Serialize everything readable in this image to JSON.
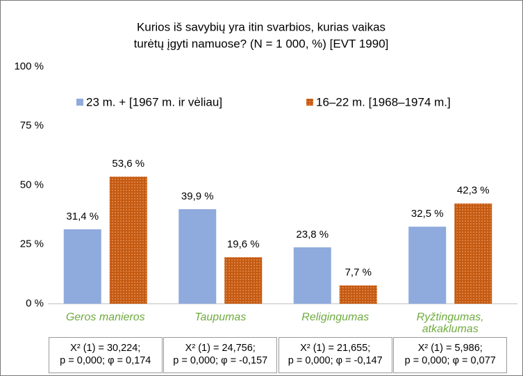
{
  "chart_data": {
    "type": "bar",
    "title": [
      "Kurios iš savybių yra itin svarbios, kurias vaikas",
      "turėtų įgyti namuose? (N = 1 000, %) [EVT 1990]"
    ],
    "categories": [
      "Geros manieros",
      "Taupumas",
      "Religingumas",
      "Ryžtingumas, atkaklumas"
    ],
    "series": [
      {
        "name": "23 m. + [1967 m. ir vėliau]",
        "color": "#8faadc",
        "values": [
          31.4,
          39.9,
          23.8,
          32.5
        ],
        "value_labels": [
          "31,4 %",
          "39,9 %",
          "23,8 %",
          "32,5 %"
        ]
      },
      {
        "name": "16–22 m. [1968–1974 m.]",
        "color": "#c55a11",
        "pattern": "dots",
        "values": [
          53.6,
          19.6,
          7.7,
          42.3
        ],
        "value_labels": [
          "53,6 %",
          "19,6 %",
          "7,7 %",
          "42,3 %"
        ]
      }
    ],
    "ylim": [
      0,
      100
    ],
    "yticks": [
      {
        "value": 0,
        "label": "0 %"
      },
      {
        "value": 25,
        "label": "25 %"
      },
      {
        "value": 50,
        "label": "50 %"
      },
      {
        "value": 75,
        "label": "75 %"
      },
      {
        "value": 100,
        "label": "100 %"
      }
    ],
    "grid": false,
    "legend": "top",
    "annotations": [
      {
        "line1": "X² (1) = 30,224;",
        "line2": "p = 0,000; φ = 0,174"
      },
      {
        "line1": "X² (1) = 24,756;",
        "line2": "p = 0,000; φ = -0,157"
      },
      {
        "line1": "X² (1) = 21,655;",
        "line2": "p = 0,000; φ = -0,147"
      },
      {
        "line1": "X² (1) = 5,986;",
        "line2": "p = 0,000; φ = 0,077"
      }
    ]
  }
}
